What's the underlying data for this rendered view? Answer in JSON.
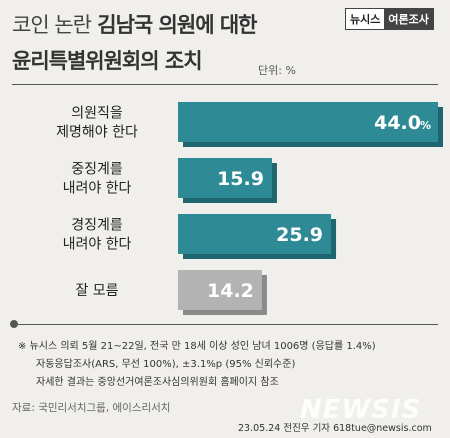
{
  "title": {
    "line1_light": "코인 논란",
    "line1_bold": "김남국 의원에 대한",
    "line2": "윤리특별위원회의 조치",
    "unit": "단위: %"
  },
  "badge": {
    "brand": "뉴시스",
    "section": "여론조사"
  },
  "chart_data": {
    "type": "bar",
    "orientation": "horizontal",
    "categories": [
      [
        "의원직을",
        "제명해야 한다"
      ],
      [
        "중징계를",
        "내려야 한다"
      ],
      [
        "경징계를",
        "내려야 한다"
      ],
      [
        "잘 모름"
      ]
    ],
    "values": [
      44.0,
      15.9,
      25.9,
      14.2
    ],
    "value_labels": [
      "44.0",
      "15.9",
      "25.9",
      "14.2"
    ],
    "value_suffix": [
      "%",
      "",
      "",
      ""
    ],
    "colors": [
      "#2e8b96",
      "#2e8b96",
      "#2e8b96",
      "#b3b3b3"
    ],
    "xlim": [
      0,
      44
    ]
  },
  "notes": {
    "line1": "※ 뉴시스 의뢰 5월 21~22일, 전국 만 18세 이상 성인 남녀 1006명 (응답률 1.4%)",
    "line2": "자동응답조사(ARS, 무선 100%), ±3.1%p (95% 신뢰수준)",
    "line3": "자세한 결과는 중앙선거여론조사심의위원회 홈페이지 참조"
  },
  "source": "자료: 국민리서치그룹, 에이스리서치",
  "credit": "23.05.24 전진우 기자 618tue@newsis.com",
  "watermark": "NEWSIS"
}
